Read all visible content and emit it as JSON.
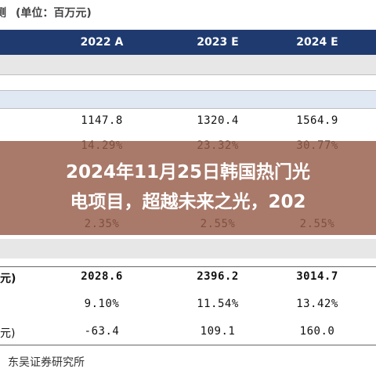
{
  "header": {
    "partial": "测",
    "unit": "(单位：百万元)"
  },
  "table": {
    "columns": [
      "2022 A",
      "2023 E",
      "2024 E"
    ],
    "rows": [
      {
        "values": [
          "1147.8",
          "1320.4",
          "1564.9"
        ]
      },
      {
        "values": [
          "14.29%",
          "23.32%",
          "30.77%"
        ]
      },
      {
        "values": [
          "2.35%",
          "2.55%",
          "2.55%"
        ]
      },
      {
        "label": "元)",
        "values": [
          "2028.6",
          "2396.2",
          "3014.7"
        ]
      },
      {
        "values": [
          "9.10%",
          "11.54%",
          "13.42%"
        ]
      },
      {
        "label": "元)",
        "values": [
          "-63.4",
          "109.1",
          "160.0"
        ]
      }
    ]
  },
  "overlay": {
    "lines": [
      "2024年11月25日韩国热门光",
      "电项目，超越未来之光，202"
    ]
  },
  "footer": "东吴证券研究所"
}
